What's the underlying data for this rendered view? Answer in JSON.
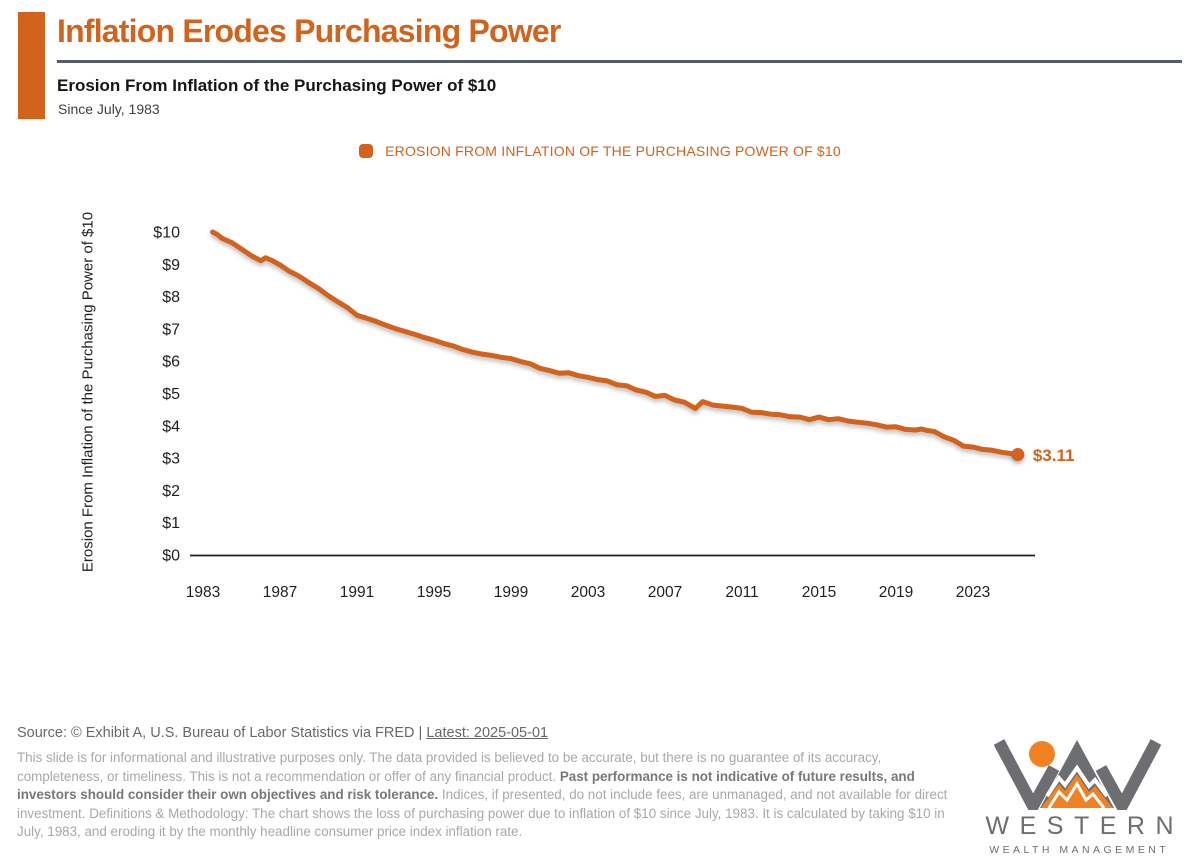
{
  "header": {
    "title": "Inflation Erodes Purchasing Power",
    "subtitle": "Erosion From Inflation of the Purchasing Power of $10",
    "period": "Since July, 1983"
  },
  "legend": {
    "label": "EROSION FROM INFLATION OF THE PURCHASING POWER OF $10"
  },
  "colors": {
    "accent_orange": "#d2621c",
    "logo_gray": "#6d6e71",
    "logo_orange": "#f08224",
    "axis_text": "#231f20",
    "rule_gray": "#565d66",
    "source_gray": "#66686b",
    "disclaimer_gray": "#a6a8ab",
    "disclaimer_bold_gray": "#77787b"
  },
  "chart_data": {
    "type": "line",
    "title": "Erosion From Inflation of the Purchasing Power of $10",
    "series_name": "EROSION FROM INFLATION OF THE PURCHASING POWER OF $10",
    "ylabel": "Erosion From Inflation of the Purchasing Power of $10",
    "xlabel": "",
    "ylim": [
      0,
      10
    ],
    "xlim": [
      1983,
      2026
    ],
    "grid": false,
    "legend_position": "top-center",
    "y_ticks": [
      "$10",
      "$9",
      "$8",
      "$7",
      "$6",
      "$5",
      "$4",
      "$3",
      "$2",
      "$1",
      "$0"
    ],
    "y_tick_values": [
      10,
      9,
      8,
      7,
      6,
      5,
      4,
      3,
      2,
      1,
      0
    ],
    "x_ticks": [
      1983,
      1987,
      1991,
      1995,
      1999,
      2003,
      2007,
      2011,
      2015,
      2019,
      2023
    ],
    "end_label": "$3.11",
    "end_value": 3.11,
    "points": [
      [
        1983.5,
        10.0
      ],
      [
        1983.75,
        9.92
      ],
      [
        1984.0,
        9.8
      ],
      [
        1984.5,
        9.67
      ],
      [
        1985.0,
        9.47
      ],
      [
        1985.5,
        9.27
      ],
      [
        1986.0,
        9.11
      ],
      [
        1986.25,
        9.2
      ],
      [
        1986.58,
        9.12
      ],
      [
        1987.0,
        8.98
      ],
      [
        1987.5,
        8.78
      ],
      [
        1988.0,
        8.63
      ],
      [
        1988.5,
        8.43
      ],
      [
        1989.0,
        8.25
      ],
      [
        1989.5,
        8.03
      ],
      [
        1990.0,
        7.84
      ],
      [
        1990.5,
        7.66
      ],
      [
        1991.0,
        7.42
      ],
      [
        1991.5,
        7.33
      ],
      [
        1992.0,
        7.23
      ],
      [
        1992.5,
        7.11
      ],
      [
        1993.0,
        7.01
      ],
      [
        1993.5,
        6.92
      ],
      [
        1994.0,
        6.83
      ],
      [
        1994.5,
        6.73
      ],
      [
        1995.0,
        6.65
      ],
      [
        1995.5,
        6.55
      ],
      [
        1996.0,
        6.47
      ],
      [
        1996.5,
        6.36
      ],
      [
        1997.0,
        6.28
      ],
      [
        1997.5,
        6.22
      ],
      [
        1998.0,
        6.18
      ],
      [
        1998.5,
        6.12
      ],
      [
        1999.0,
        6.08
      ],
      [
        1999.5,
        5.99
      ],
      [
        2000.0,
        5.92
      ],
      [
        2000.5,
        5.78
      ],
      [
        2001.0,
        5.71
      ],
      [
        2001.5,
        5.63
      ],
      [
        2002.0,
        5.64
      ],
      [
        2002.5,
        5.55
      ],
      [
        2003.0,
        5.5
      ],
      [
        2003.5,
        5.43
      ],
      [
        2004.0,
        5.39
      ],
      [
        2004.5,
        5.27
      ],
      [
        2005.0,
        5.24
      ],
      [
        2005.5,
        5.11
      ],
      [
        2006.0,
        5.04
      ],
      [
        2006.5,
        4.91
      ],
      [
        2007.0,
        4.94
      ],
      [
        2007.5,
        4.8
      ],
      [
        2008.0,
        4.73
      ],
      [
        2008.58,
        4.54
      ],
      [
        2008.96,
        4.75
      ],
      [
        2009.5,
        4.64
      ],
      [
        2010.0,
        4.61
      ],
      [
        2010.5,
        4.58
      ],
      [
        2011.0,
        4.54
      ],
      [
        2011.5,
        4.42
      ],
      [
        2012.0,
        4.41
      ],
      [
        2012.5,
        4.36
      ],
      [
        2013.0,
        4.34
      ],
      [
        2013.5,
        4.28
      ],
      [
        2014.0,
        4.27
      ],
      [
        2014.5,
        4.19
      ],
      [
        2015.0,
        4.27
      ],
      [
        2015.5,
        4.19
      ],
      [
        2016.0,
        4.22
      ],
      [
        2016.5,
        4.15
      ],
      [
        2017.0,
        4.11
      ],
      [
        2017.5,
        4.08
      ],
      [
        2018.0,
        4.03
      ],
      [
        2018.5,
        3.96
      ],
      [
        2019.0,
        3.97
      ],
      [
        2019.5,
        3.89
      ],
      [
        2020.0,
        3.87
      ],
      [
        2020.33,
        3.9
      ],
      [
        2020.58,
        3.86
      ],
      [
        2021.0,
        3.82
      ],
      [
        2021.5,
        3.66
      ],
      [
        2022.0,
        3.55
      ],
      [
        2022.5,
        3.37
      ],
      [
        2023.0,
        3.34
      ],
      [
        2023.5,
        3.27
      ],
      [
        2024.0,
        3.24
      ],
      [
        2024.5,
        3.18
      ],
      [
        2025.0,
        3.14
      ],
      [
        2025.33,
        3.11
      ]
    ]
  },
  "footer": {
    "source_prefix": "Source: © Exhibit A, U.S. Bureau of Labor Statistics via FRED | ",
    "source_latest": "Latest: 2025-05-01",
    "disclaimer_1": "This slide is for informational and illustrative purposes only. The data provided is believed to be accurate, but there is no guarantee of its accuracy, completeness, or timeliness. This is not a recommendation or offer of any financial product. ",
    "disclaimer_bold": "Past performance is not indicative of future results, and investors should consider their own objectives and risk tolerance. ",
    "disclaimer_2": "Indices, if presented, do not include fees, are unmanaged, and not available for direct investment. Definitions & Methodology: The chart shows the loss of purchasing power due to inflation of $10 since July, 1983. It is calculated by taking $10 in July, 1983, and eroding it by the monthly headline consumer price index inflation rate.",
    "logo_name": "WESTERN",
    "logo_sub": "WEALTH MANAGEMENT"
  }
}
